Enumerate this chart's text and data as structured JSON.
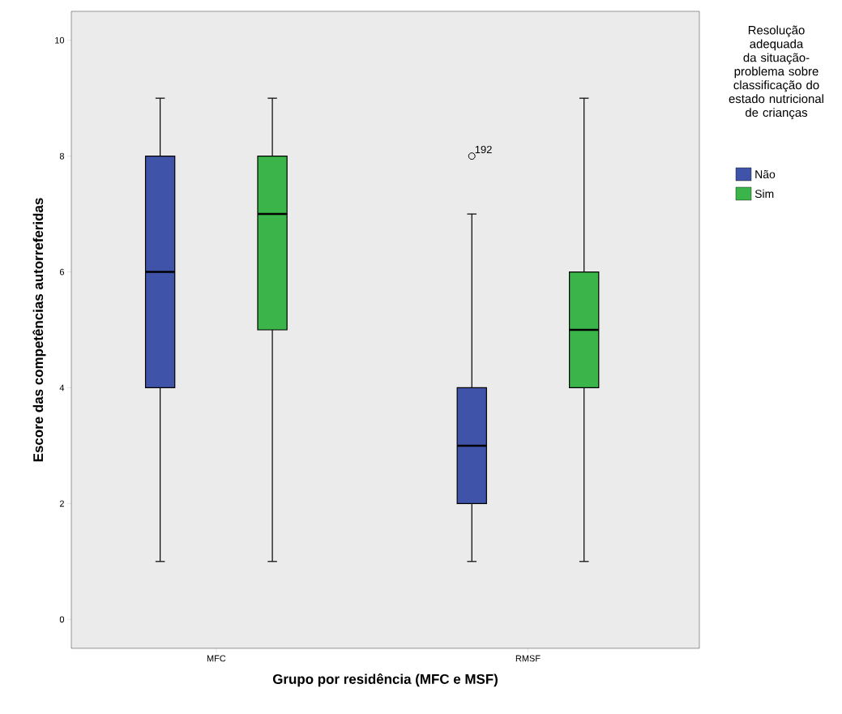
{
  "chart_data": {
    "type": "box",
    "xlabel": "Grupo por residência (MFC e MSF)",
    "ylabel": "Escore das competências autorreferidas",
    "legend_title": "Resolução adequada da situação-problema sobre classificação do estado nutricional de crianças",
    "categories": [
      "MFC",
      "RMSF"
    ],
    "series": [
      {
        "name": "Não",
        "color": "#3f54a8",
        "boxes": [
          {
            "low": 1,
            "q1": 4,
            "median": 6,
            "q3": 8,
            "high": 9
          },
          {
            "low": 1,
            "q1": 2,
            "median": 3,
            "q3": 4,
            "high": 7,
            "outliers": [
              8
            ]
          }
        ]
      },
      {
        "name": "Sim",
        "color": "#3bb54a",
        "boxes": [
          {
            "low": 1,
            "q1": 5,
            "median": 7,
            "q3": 8,
            "high": 9
          },
          {
            "low": 1,
            "q1": 4,
            "median": 5,
            "q3": 6,
            "high": 9
          }
        ]
      }
    ],
    "annotations": [
      "192"
    ],
    "ylim": [
      -0.5,
      10.5
    ],
    "yticks": [
      0,
      2,
      4,
      6,
      8,
      10
    ],
    "grid": false,
    "legend": "right"
  }
}
